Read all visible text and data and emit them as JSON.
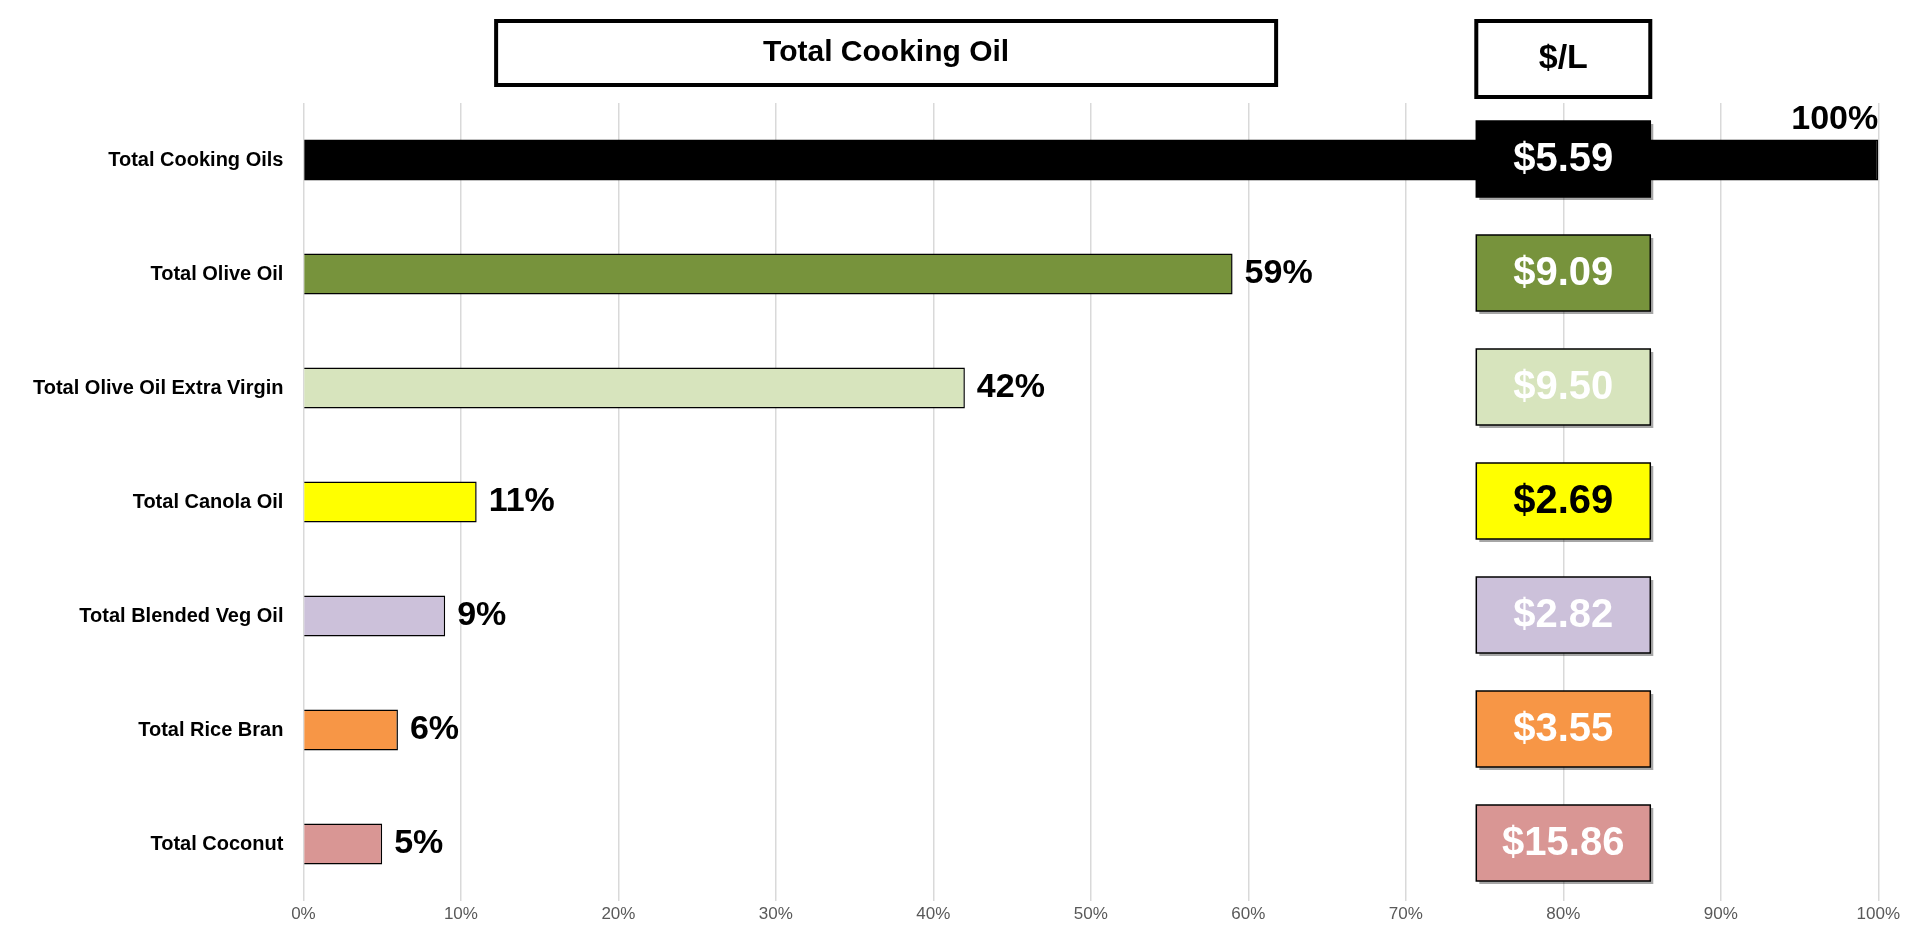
{
  "chart_data": {
    "type": "bar",
    "orientation": "horizontal",
    "title": "Total Cooking Oil",
    "categories": [
      "Total Cooking Oils",
      "Total Olive Oil",
      "Total Olive Oil Extra Virgin",
      "Total Canola Oil",
      "Total Blended Veg Oil",
      "Total Rice Bran",
      "Total Coconut"
    ],
    "values": [
      100,
      59,
      42,
      11,
      9,
      6,
      5
    ],
    "value_labels": [
      "100%",
      "59%",
      "42%",
      "11%",
      "9%",
      "6%",
      "5%"
    ],
    "colors": [
      "#000000",
      "#77933c",
      "#d7e4bd",
      "#ffff00",
      "#ccc1da",
      "#f79646",
      "#d99694"
    ],
    "xlim": [
      0,
      100
    ],
    "xticks": [
      {
        "value": 0,
        "label": "0%"
      },
      {
        "value": 10,
        "label": "10%"
      },
      {
        "value": 20,
        "label": "20%"
      },
      {
        "value": 30,
        "label": "30%"
      },
      {
        "value": 40,
        "label": "40%"
      },
      {
        "value": 50,
        "label": "50%"
      },
      {
        "value": 60,
        "label": "60%"
      },
      {
        "value": 70,
        "label": "70%"
      },
      {
        "value": 80,
        "label": "80%"
      },
      {
        "value": 90,
        "label": "90%"
      },
      {
        "value": 100,
        "label": "100%"
      }
    ],
    "grid": "x",
    "legend": false,
    "annotations": [
      "$/L",
      "$5.59",
      "$9.09",
      "$9.50",
      "$2.69",
      "$2.82",
      "$3.55",
      "$15.86"
    ]
  }
}
